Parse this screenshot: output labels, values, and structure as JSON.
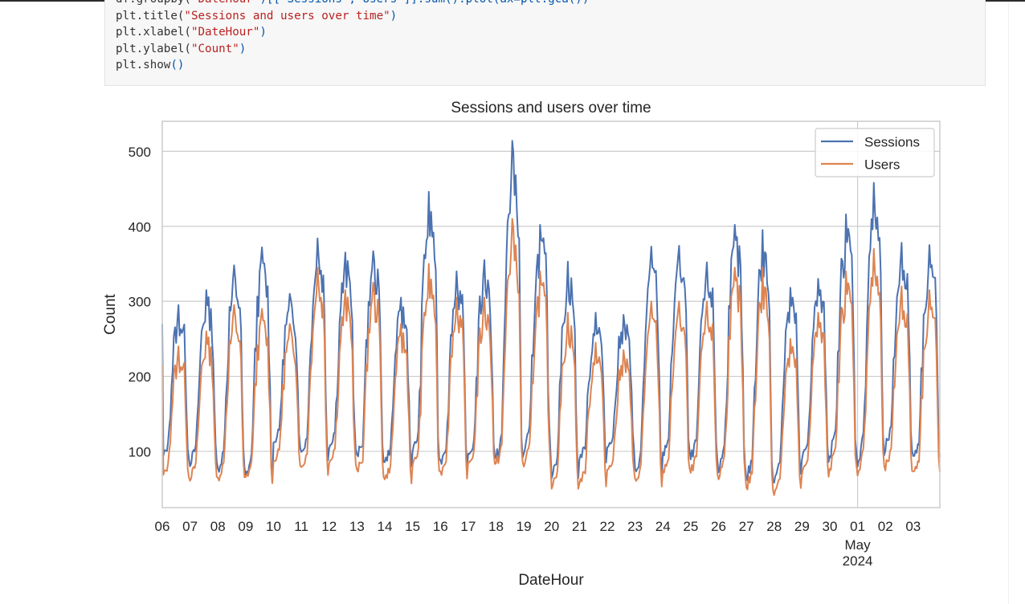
{
  "code_cell": {
    "lines": [
      {
        "prefix": "df.groupby(",
        "string": "\"DateHour\"",
        "suffix": ")[[\"Sessions\",\"Users\"]].sum().plot(ax=plt.gca())"
      },
      {
        "prefix": "plt.title(",
        "string": "\"Sessions and users over time\"",
        "suffix": ")"
      },
      {
        "prefix": "plt.xlabel(",
        "string": "\"DateHour\"",
        "suffix": ")"
      },
      {
        "prefix": "plt.ylabel(",
        "string": "\"Count\"",
        "suffix": ")"
      },
      {
        "prefix": "plt.show",
        "string": "",
        "suffix": "()"
      }
    ]
  },
  "chart_data": {
    "type": "line",
    "title": "Sessions and users over time",
    "xlabel": "DateHour",
    "ylabel": "Count",
    "ylim": [
      25,
      540
    ],
    "yticks": [
      100,
      200,
      300,
      400,
      500
    ],
    "xlim_days": [
      "2024-04-06",
      "2024-05-03T23:00"
    ],
    "xtick_labels": [
      "06",
      "07",
      "08",
      "09",
      "10",
      "11",
      "12",
      "13",
      "14",
      "15",
      "16",
      "17",
      "18",
      "19",
      "20",
      "21",
      "22",
      "23",
      "24",
      "25",
      "26",
      "27",
      "28",
      "29",
      "30",
      "01",
      "02",
      "03"
    ],
    "xtick_sublabel": {
      "at": "01",
      "lines": [
        "May",
        "2024"
      ]
    },
    "vertical_line_at": "01",
    "grid": true,
    "legend_position": "upper-right",
    "series": [
      {
        "name": "Sessions",
        "color": "#4c72b0",
        "daily_peaks": [
          295,
          315,
          348,
          372,
          310,
          384,
          365,
          367,
          305,
          446,
          340,
          355,
          514,
          402,
          353,
          285,
          282,
          373,
          374,
          352,
          402,
          395,
          318,
          330,
          416,
          458,
          378,
          375
        ],
        "daily_troughs": [
          90,
          85,
          75,
          65,
          110,
          95,
          105,
          90,
          85,
          95,
          85,
          90,
          85,
          100,
          70,
          90,
          105,
          70,
          95,
          90,
          75,
          60,
          65,
          90,
          95,
          85,
          105,
          90
        ]
      },
      {
        "name": "Users",
        "color": "#dd8452",
        "daily_peaks": [
          240,
          260,
          295,
          290,
          270,
          345,
          315,
          325,
          270,
          350,
          305,
          305,
          410,
          340,
          285,
          245,
          235,
          300,
          300,
          300,
          345,
          345,
          250,
          285,
          340,
          370,
          320,
          315
        ],
        "daily_troughs": [
          65,
          65,
          63,
          63,
          85,
          75,
          85,
          70,
          62,
          78,
          70,
          80,
          80,
          82,
          55,
          58,
          75,
          58,
          72,
          72,
          65,
          48,
          47,
          70,
          78,
          72,
          78,
          70
        ]
      }
    ]
  }
}
